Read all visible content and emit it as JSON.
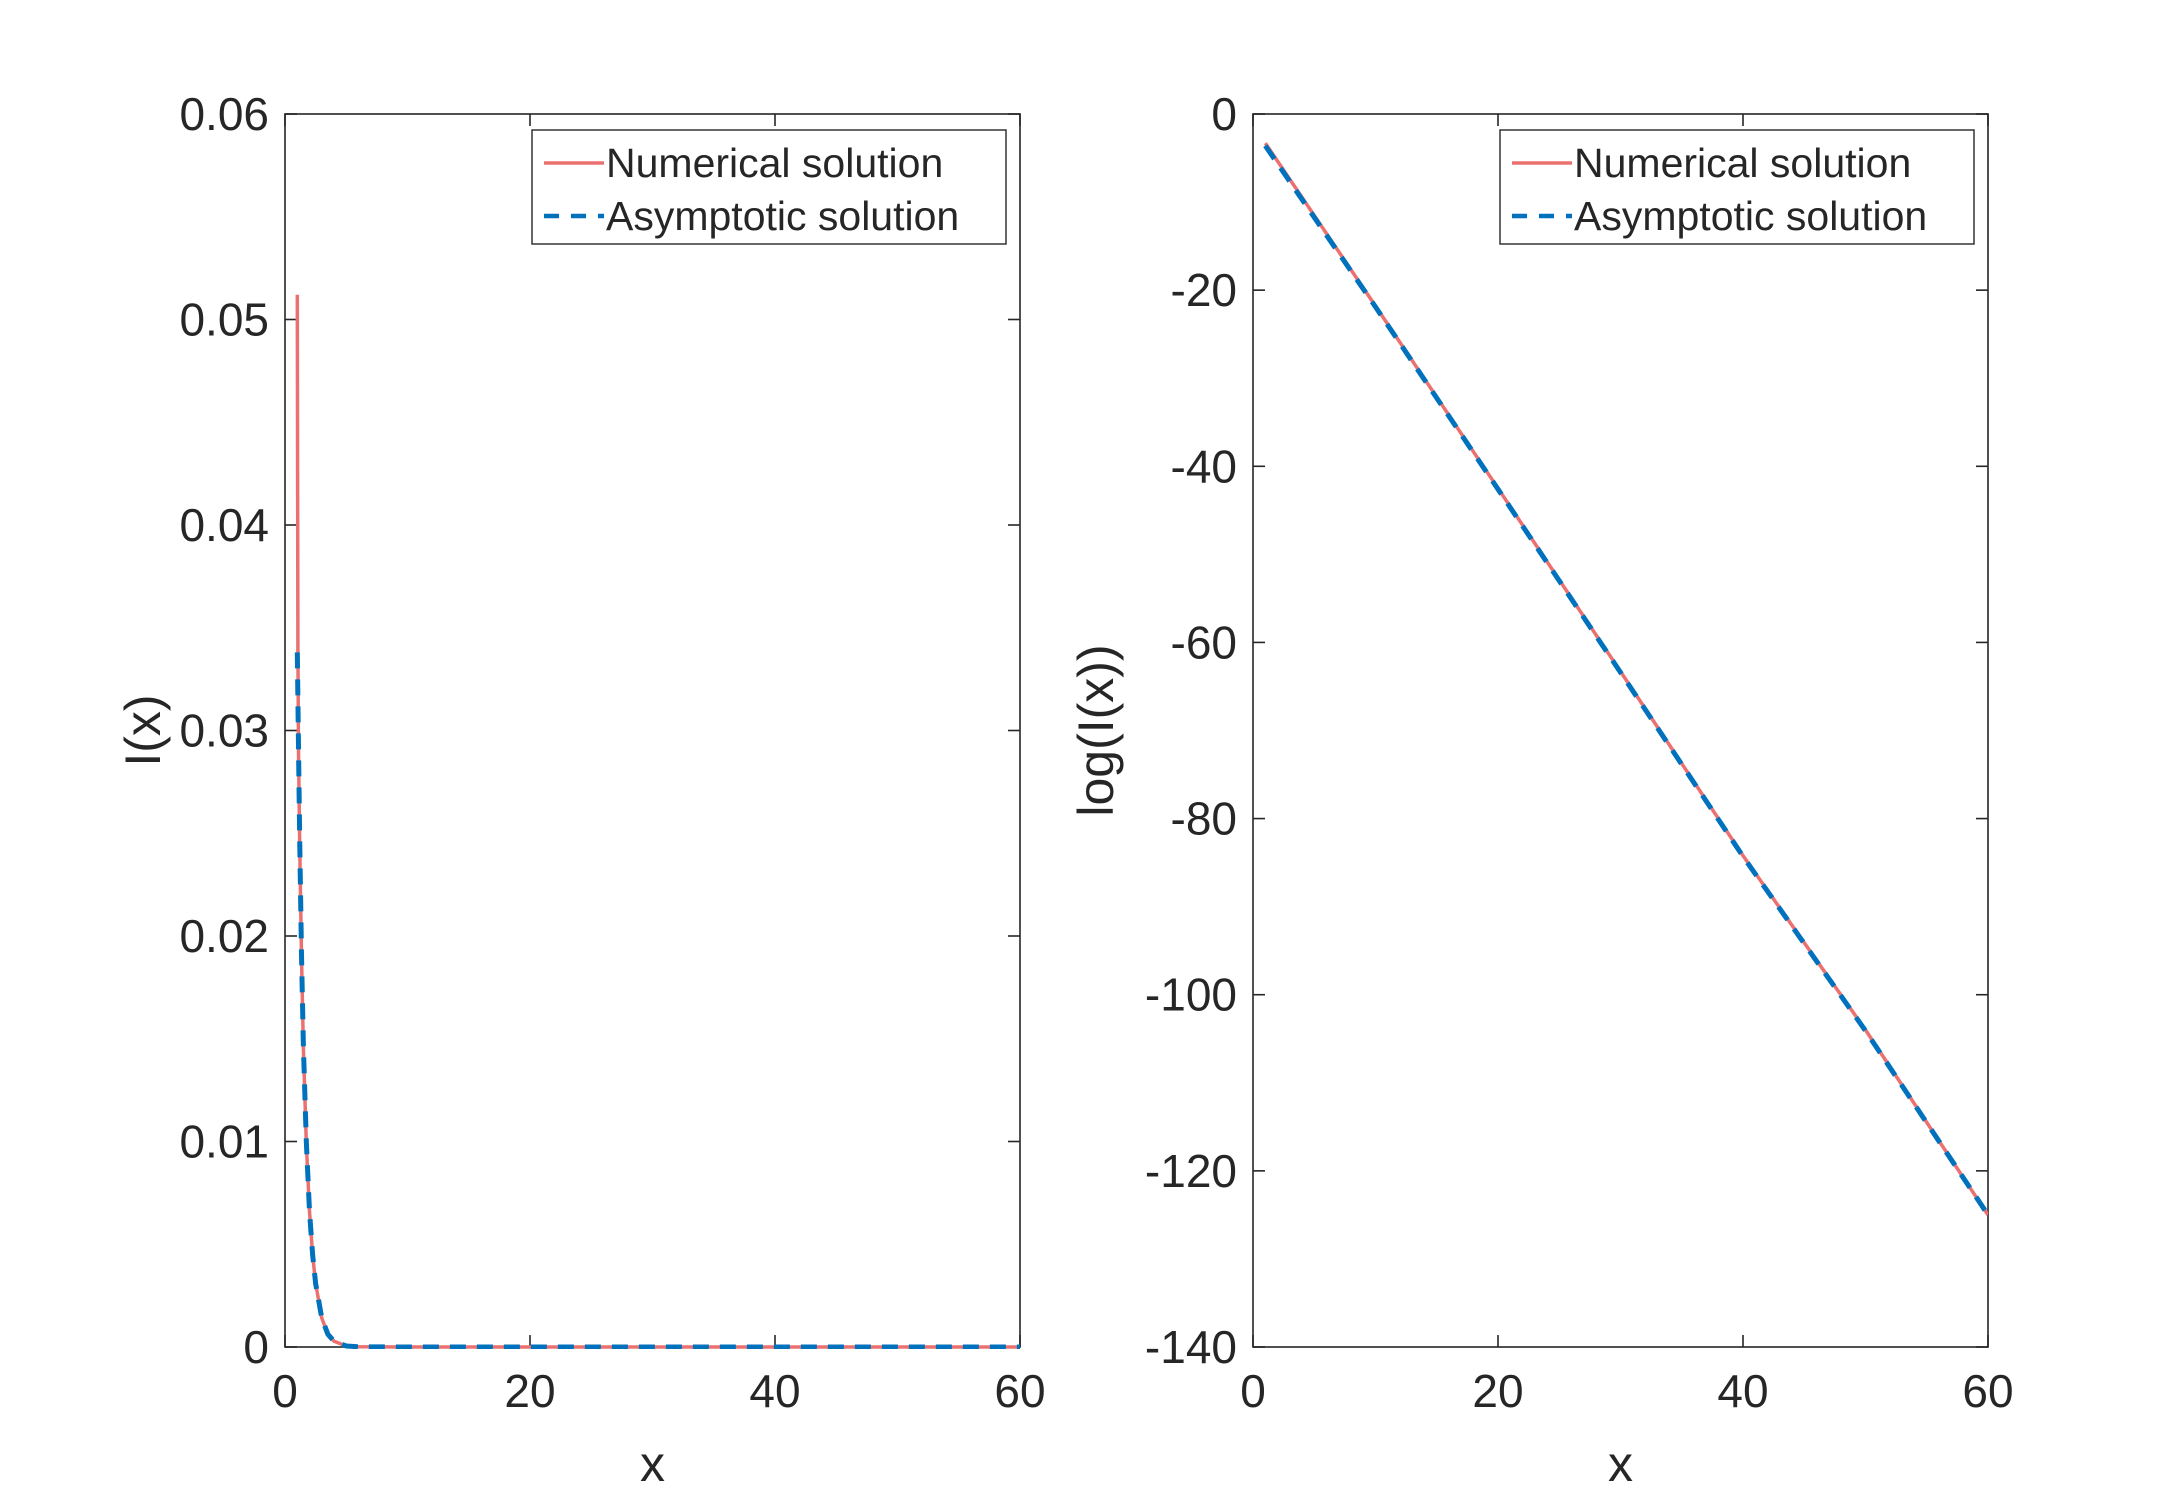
{
  "colors": {
    "numerical": "#eb7171",
    "asymptotic": "#0072bd",
    "axes": "#262626"
  },
  "chart_data": [
    {
      "type": "line",
      "xlabel": "x",
      "ylabel": "I(x)",
      "xlim": [
        0,
        60
      ],
      "ylim": [
        0,
        0.06
      ],
      "xticks": [
        0,
        20,
        40,
        60
      ],
      "yticks": [
        0,
        0.01,
        0.02,
        0.03,
        0.04,
        0.05,
        0.06
      ],
      "xtick_labels": [
        "0",
        "20",
        "40",
        "60"
      ],
      "ytick_labels": [
        "0",
        "0.01",
        "0.02",
        "0.03",
        "0.04",
        "0.05",
        "0.06"
      ],
      "grid": false,
      "legend_position": "top-right",
      "series": [
        {
          "name": "Numerical solution",
          "style": "solid",
          "x": [
            1,
            1.05,
            1.1,
            1.2,
            1.35,
            1.5,
            1.75,
            2,
            2.25,
            2.5,
            3,
            3.5,
            4,
            5,
            6,
            10,
            20,
            30,
            40,
            50,
            60
          ],
          "y": [
            0.0512,
            0.034,
            0.029,
            0.0245,
            0.019,
            0.0145,
            0.0098,
            0.0066,
            0.0045,
            0.0031,
            0.0014,
            0.00062,
            0.00028,
            5e-05,
            1e-05,
            0,
            0,
            0,
            0,
            0,
            0
          ]
        },
        {
          "name": "Asymptotic solution",
          "style": "dashed",
          "x": [
            1,
            1.1,
            1.2,
            1.35,
            1.5,
            1.75,
            2,
            2.25,
            2.5,
            3,
            3.5,
            4,
            5,
            6,
            10,
            20,
            30,
            40,
            50,
            60
          ],
          "y": [
            0.0338,
            0.0292,
            0.0247,
            0.0191,
            0.0146,
            0.0099,
            0.0066,
            0.0045,
            0.0031,
            0.0014,
            0.00062,
            0.00028,
            5e-05,
            1e-05,
            0,
            0,
            0,
            0,
            0,
            0
          ]
        }
      ]
    },
    {
      "type": "line",
      "xlabel": "x",
      "ylabel": "log(I(x))",
      "xlim": [
        0,
        60
      ],
      "ylim": [
        -140,
        0
      ],
      "xticks": [
        0,
        20,
        40,
        60
      ],
      "yticks": [
        -140,
        -120,
        -100,
        -80,
        -60,
        -40,
        -20,
        0
      ],
      "xtick_labels": [
        "0",
        "20",
        "40",
        "60"
      ],
      "ytick_labels": [
        "-140",
        "-120",
        "-100",
        "-80",
        "-60",
        "-40",
        "-20",
        "0"
      ],
      "grid": false,
      "legend_position": "top-right",
      "series": [
        {
          "name": "Numerical solution",
          "style": "solid",
          "x": [
            1,
            10,
            20,
            30,
            40,
            50,
            60
          ],
          "y": [
            -3.3,
            -21.8,
            -42.5,
            -63.3,
            -84.2,
            -104.0,
            -125.0
          ]
        },
        {
          "name": "Asymptotic solution",
          "style": "dashed",
          "x": [
            1,
            10,
            20,
            30,
            40,
            50,
            60
          ],
          "y": [
            -3.6,
            -21.9,
            -42.6,
            -63.4,
            -84.3,
            -104.1,
            -125.0
          ]
        }
      ]
    }
  ]
}
